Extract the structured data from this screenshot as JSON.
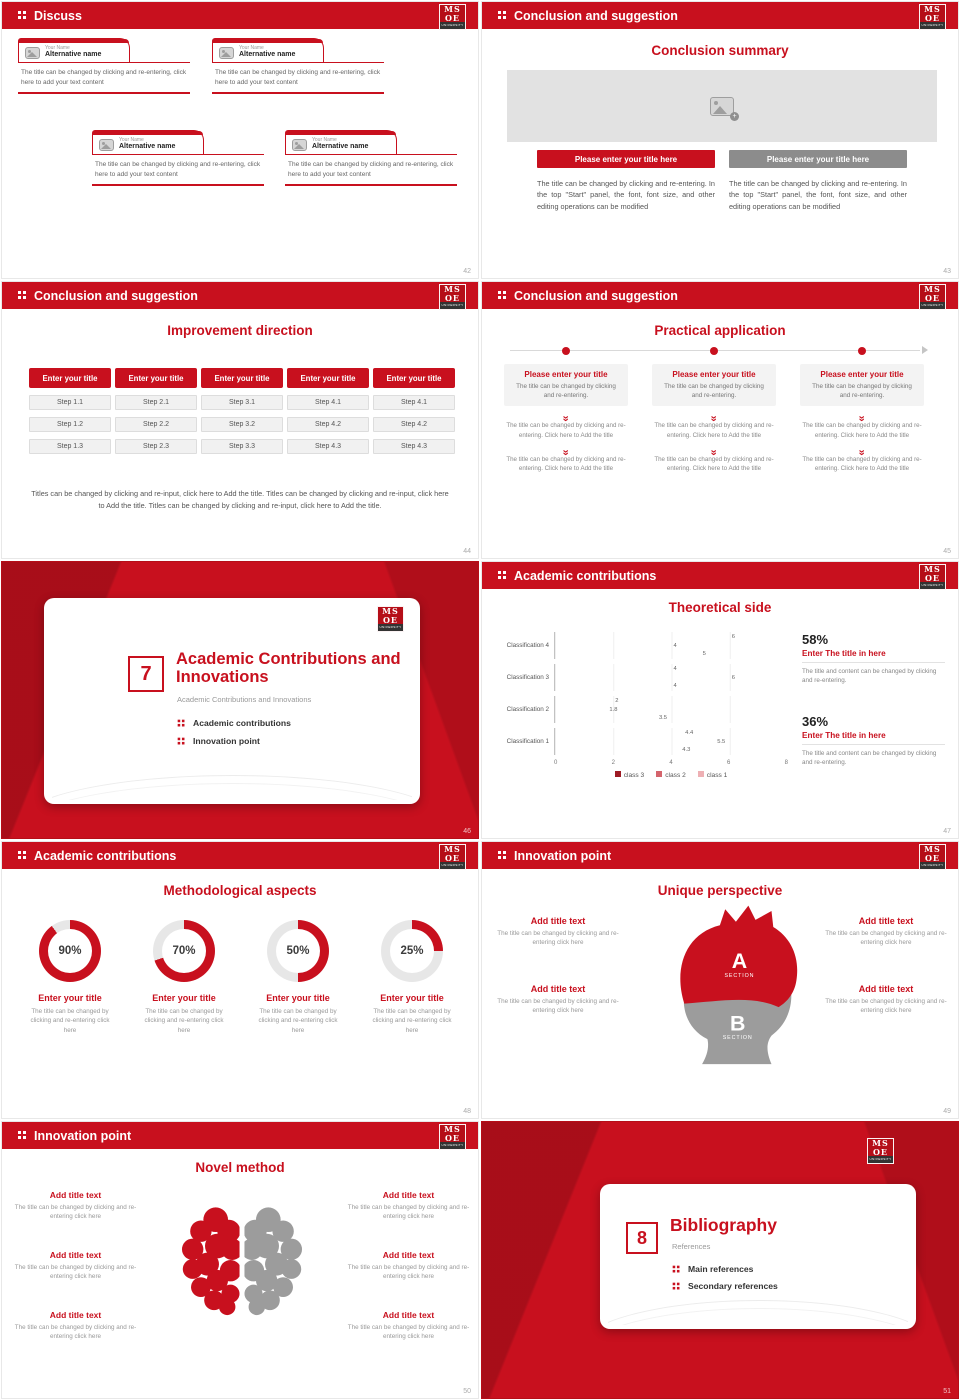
{
  "brand": {
    "line1": "MS",
    "line2": "OE",
    "line3": "UNIVERSITY",
    "accent_red": "#c8101e"
  },
  "slides": {
    "s42": {
      "header": "Discuss",
      "page": "42",
      "card": {
        "name": "Your Name",
        "alt": "Alternative name",
        "text": "The title can be changed by clicking and re-entering, click here to add your text content"
      }
    },
    "s43": {
      "header": "Conclusion and suggestion",
      "page": "43",
      "title": "Conclusion summary",
      "btn_left": "Please enter your title here",
      "btn_right": "Please enter your title here",
      "para_left": "The title can be changed by clicking and re-entering. In the top \"Start\" panel, the font, font size, and other editing operations can be modified",
      "para_right": "The title can be changed by clicking and re-entering. In the top \"Start\" panel, the font, font size, and other editing operations can be modified"
    },
    "s44": {
      "header": "Conclusion and suggestion",
      "page": "44",
      "title": "Improvement direction",
      "button": "Enter your title",
      "columns": [
        [
          "Step 1.1",
          "Step 1.2",
          "Step 1.3"
        ],
        [
          "Step 2.1",
          "Step 2.2",
          "Step 2.3"
        ],
        [
          "Step 3.1",
          "Step 3.2",
          "Step 3.3"
        ],
        [
          "Step 4.1",
          "Step 4.2",
          "Step 4.3"
        ],
        [
          "Step 4.1",
          "Step 4.2",
          "Step 4.3"
        ]
      ],
      "para": "Titles can be changed by clicking and re-input, click here to Add the title. Titles can be changed by clicking and re-input, click here to Add the title. Titles can be changed by clicking and re-input, click here to Add the title."
    },
    "s45": {
      "header": "Conclusion and suggestion",
      "page": "45",
      "title": "Practical application",
      "col_title": "Please enter your title",
      "col_sub": "The title can be changed by clicking and re-entering.",
      "col_body": "The title can be changed by clicking and re-entering. Click here to Add the title"
    },
    "s46": {
      "page": "46",
      "number": "7",
      "title": "Academic Contributions and Innovations",
      "subtitle": "Academic Contributions and Innovations",
      "bullet1": "Academic contributions",
      "bullet2": "Innovation point"
    },
    "s47": {
      "header": "Academic contributions",
      "page": "47",
      "title": "Theoretical side",
      "stat1": {
        "pct": "58%",
        "title": "Enter The title in here",
        "text": "The title and content can be changed by clicking and re-entering."
      },
      "stat2": {
        "pct": "36%",
        "title": "Enter The title in here",
        "text": "The title and content can be changed by clicking and re-entering."
      }
    },
    "s48": {
      "header": "Academic contributions",
      "page": "48",
      "title": "Methodological aspects",
      "donuts": [
        {
          "value": 90,
          "label": "90%",
          "title": "Enter your title",
          "text": "The title can be changed by clicking and re-entering click here"
        },
        {
          "value": 70,
          "label": "70%",
          "title": "Enter your title",
          "text": "The title can be changed by clicking and re-entering click here"
        },
        {
          "value": 50,
          "label": "50%",
          "title": "Enter your title",
          "text": "The title can be changed by clicking and re-entering click here"
        },
        {
          "value": 25,
          "label": "25%",
          "title": "Enter your title",
          "text": "The title can be changed by clicking and re-entering click here"
        }
      ]
    },
    "s49": {
      "header": "Innovation point",
      "page": "49",
      "title": "Unique perspective",
      "section_a": "A",
      "section_a_sub": "SECTION",
      "section_b": "B",
      "section_b_sub": "SECTION",
      "item_title": "Add title text",
      "item_text": "The title can be changed by clicking and re-entering click here"
    },
    "s50": {
      "header": "Innovation point",
      "page": "50",
      "title": "Novel method",
      "item_title": "Add title text",
      "item_text": "The title can be changed by clicking and re-entering click here"
    },
    "s51": {
      "page": "51",
      "number": "8",
      "title": "Bibliography",
      "subtitle": "References",
      "bullet1": "Main references",
      "bullet2": "Secondary references"
    }
  },
  "chart_data": {
    "type": "bar",
    "orientation": "horizontal",
    "title": "Theoretical side",
    "categories": [
      "Classification 4",
      "Classification 3",
      "Classification 2",
      "Classification 1"
    ],
    "series": [
      {
        "name": "class 3",
        "color": "#9d1b24",
        "values": [
          6,
          4,
          2,
          4.4
        ]
      },
      {
        "name": "class 2",
        "color": "#d4646c",
        "values": [
          4,
          6,
          1.8,
          5.5
        ]
      },
      {
        "name": "class 1",
        "color": "#eeb0b4",
        "values": [
          5,
          4,
          3.5,
          4.3
        ]
      }
    ],
    "xlim": [
      0,
      8
    ],
    "xticks": [
      "0",
      "2",
      "4",
      "6",
      "8"
    ],
    "legend_position": "bottom",
    "grid": true
  }
}
